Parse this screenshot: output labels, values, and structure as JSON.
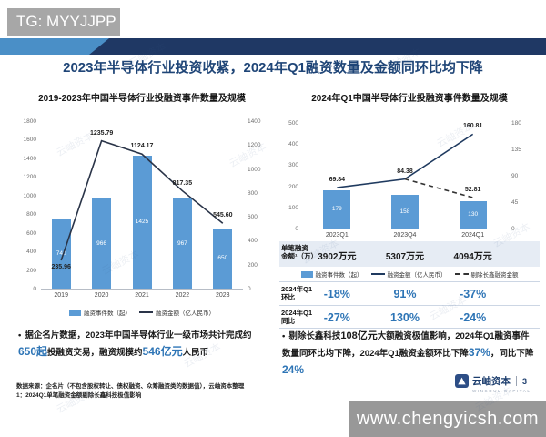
{
  "header": {
    "tg_label": "TG: MYYJJPP"
  },
  "slide_title": "2023年半导体行业投资收紧，2024年Q1融资数量及金额同环比均下降",
  "colors": {
    "accent_blue": "#2E75B6",
    "bar_blue": "#5B9BD5",
    "band_navy": "#1F3864",
    "band_light_blue": "#4A8FC7",
    "title_blue": "#1F4577",
    "left_line": "#2A3448",
    "right_line": "#1F3A5F",
    "dashed_line": "#333333",
    "table_band_bg": "#E6ECF4",
    "tg_grey": "#A7A7A7"
  },
  "chart_data": [
    {
      "type": "bar+line",
      "title": "2019-2023年中国半导体行业投融资事件数量及规模",
      "categories": [
        "2019",
        "2020",
        "2021",
        "2022",
        "2023"
      ],
      "series": [
        {
          "name": "融资事件数（起）",
          "kind": "bar",
          "axis": "left",
          "color": "#5B9BD5",
          "values": [
            740,
            966,
            1425,
            967,
            650
          ],
          "labels": [
            "740",
            "966",
            "1425",
            "967",
            "650"
          ]
        },
        {
          "name": "融资金额（亿人民币）",
          "kind": "line",
          "axis": "right",
          "color": "#2A3448",
          "values": [
            235.96,
            1235.79,
            1124.17,
            817.35,
            545.6
          ],
          "labels": [
            "235.96",
            "1235.79",
            "1124.17",
            "817.35",
            "545.60"
          ],
          "label_positions": [
            "below",
            "above",
            "above",
            "above",
            "above"
          ]
        }
      ],
      "y_left": {
        "min": 0,
        "max": 1800,
        "ticks": [
          1800,
          1600,
          1400,
          1200,
          1000,
          800,
          600,
          400,
          200,
          0
        ]
      },
      "y_right": {
        "min": 0,
        "max": 1400,
        "ticks": [
          1400,
          1200,
          1000,
          800,
          600,
          400,
          200,
          0
        ]
      },
      "grid": false,
      "legend_position": "bottom"
    },
    {
      "type": "bar+line",
      "title": "2024年Q1中国半导体行业投融资事件数量及规模",
      "categories": [
        "2023Q1",
        "2023Q4",
        "2024Q1"
      ],
      "series": [
        {
          "name": "融资事件数（起）",
          "kind": "bar",
          "axis": "left",
          "color": "#5B9BD5",
          "values": [
            179,
            158,
            130
          ],
          "labels": [
            "179",
            "158",
            "130"
          ]
        },
        {
          "name": "融资金额（亿人民币）",
          "kind": "line",
          "axis": "right",
          "color": "#1F3A5F",
          "values": [
            69.84,
            84.38,
            160.81
          ],
          "labels": [
            "69.84",
            "84.38",
            "160.81"
          ],
          "label_positions": [
            "above",
            "above",
            "above"
          ]
        },
        {
          "name": "剔除长鑫融资金额",
          "kind": "line-dashed",
          "axis": "right",
          "color": "#333333",
          "values": [
            null,
            84.38,
            52.81
          ],
          "labels": [
            null,
            null,
            "52.81"
          ],
          "label_positions": [
            null,
            null,
            "above"
          ]
        }
      ],
      "y_left": {
        "min": 0,
        "max": 500,
        "ticks": [
          500,
          400,
          300,
          200,
          100,
          0
        ]
      },
      "y_right": {
        "min": 0,
        "max": 180,
        "ticks": [
          180,
          135,
          90,
          45,
          0
        ]
      },
      "grid": false,
      "legend_position": "bottom"
    }
  ],
  "left_panel": {
    "bullet_segments": [
      {
        "t": "据企名片数据，2023年中国半导体行业一级市场共计完成约",
        "s": "n"
      },
      {
        "t": "650起",
        "s": "b"
      },
      {
        "t": "投融资交易，融资规模约",
        "s": "n"
      },
      {
        "t": "546亿元",
        "s": "b"
      },
      {
        "t": "人民币",
        "s": "n"
      }
    ]
  },
  "right_panel": {
    "table": {
      "per_deal": {
        "label_lines": [
          "单笔融资",
          "金额¹（万）"
        ],
        "values": [
          "3902万元",
          "5307万元",
          "4094万元"
        ]
      },
      "qoq": {
        "label_lines": [
          "2024年Q1",
          "环比"
        ],
        "values": [
          "-18%",
          "91%",
          "-37%"
        ]
      },
      "yoy": {
        "label_lines": [
          "2024年Q1",
          "同比"
        ],
        "values": [
          "-27%",
          "130%",
          "-24%"
        ]
      }
    },
    "bullet_segments": [
      {
        "t": "剔除长鑫科技",
        "s": "n"
      },
      {
        "t": "108亿元",
        "s": "k"
      },
      {
        "t": "大额融资极值影响，2024年Q1融资事件数量同环比均下降，2024年Q1融资金额环比下降",
        "s": "n"
      },
      {
        "t": "37%",
        "s": "b"
      },
      {
        "t": "，同比下降",
        "s": "n"
      },
      {
        "t": "24%",
        "s": "b"
      }
    ]
  },
  "footnotes": {
    "line1": "数据来源：企名片（不包含股权转让、债权融资、众筹融资类的数据值），云岫资本整理",
    "line2": "1：2024Q1单笔融资金额剔除长鑫科技极值影响"
  },
  "logo": {
    "name": "云岫资本",
    "page": "3",
    "subtitle": "WINSOUL CAPITAL"
  },
  "watermark": {
    "url_text": "www.chengyicsh.com",
    "diagonal_text": "云岫资本"
  }
}
